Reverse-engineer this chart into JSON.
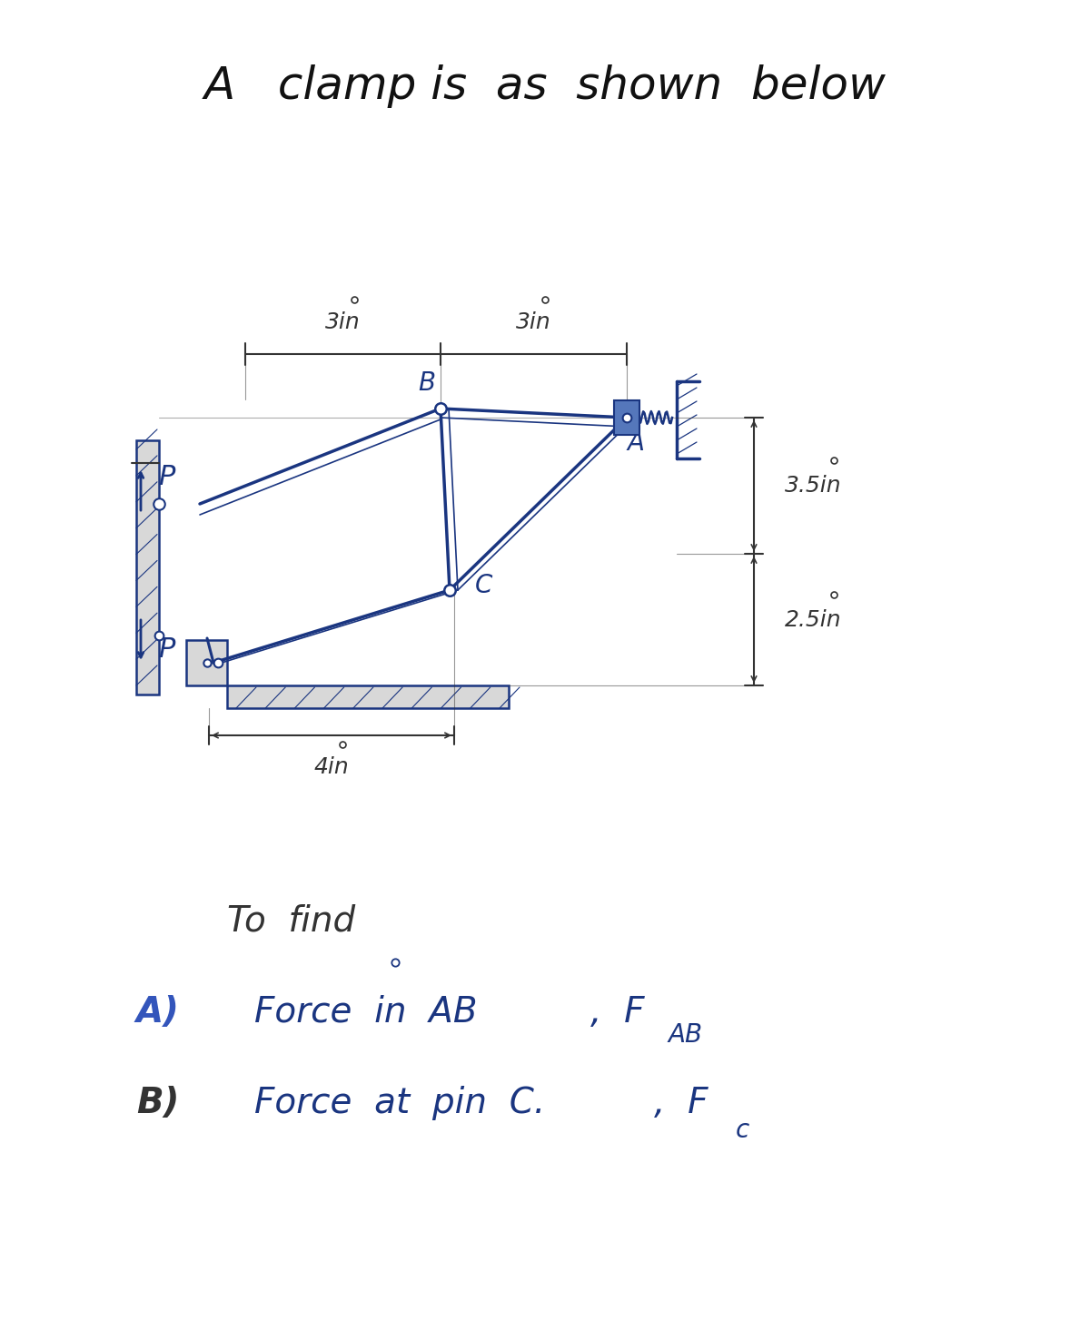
{
  "title": "A   clamp is  as  shown  below",
  "title_color": "#111111",
  "title_fontsize": 36,
  "sketch_color": "#1a3580",
  "dim_color": "#333333",
  "background": "#ffffff",
  "to_find_text": "To  find",
  "find_a_prefix": "A)",
  "find_a_text": "Force  in  AB",
  "find_a_suffix": " ,  F",
  "find_a_sub": "AB",
  "find_b_prefix": "B)",
  "find_b_text": "Force  at  pin  C.",
  "find_b_suffix": " ,  F",
  "find_b_sub": "c"
}
